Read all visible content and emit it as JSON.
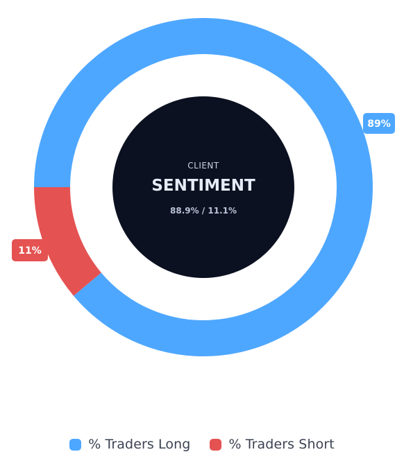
{
  "chart_data": {
    "type": "pie",
    "center": {
      "label": "CLIENT",
      "title": "SENTIMENT",
      "subtitle": "88.9% / 11.1%"
    },
    "slices": [
      {
        "name": "% Traders Long",
        "value": 88.9,
        "label": "89%",
        "color": "#4ea7ff"
      },
      {
        "name": "% Traders Short",
        "value": 11.1,
        "label": "11%",
        "color": "#e55252"
      }
    ],
    "legend_position": "bottom-center",
    "center_color": "#0b1120"
  }
}
